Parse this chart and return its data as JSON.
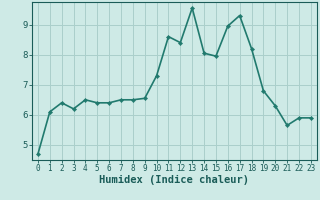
{
  "title": "",
  "xlabel": "Humidex (Indice chaleur)",
  "ylabel": "",
  "x_values": [
    0,
    1,
    2,
    3,
    4,
    5,
    6,
    7,
    8,
    9,
    10,
    11,
    12,
    13,
    14,
    15,
    16,
    17,
    18,
    19,
    20,
    21,
    22,
    23
  ],
  "y_values": [
    4.7,
    6.1,
    6.4,
    6.2,
    6.5,
    6.4,
    6.4,
    6.5,
    6.5,
    6.55,
    7.3,
    8.6,
    8.4,
    9.55,
    8.05,
    7.95,
    8.95,
    9.3,
    8.2,
    6.8,
    6.3,
    5.65,
    5.9,
    5.9
  ],
  "line_color": "#217a6e",
  "marker": "D",
  "marker_size": 2.2,
  "background_color": "#ceeae6",
  "grid_color": "#aacfcb",
  "axis_color": "#1a5c58",
  "ylim": [
    4.5,
    9.75
  ],
  "yticks": [
    5,
    6,
    7,
    8,
    9
  ],
  "xlim": [
    -0.5,
    23.5
  ],
  "linewidth": 1.2,
  "tick_fontsize": 5.5,
  "xlabel_fontsize": 7.5
}
